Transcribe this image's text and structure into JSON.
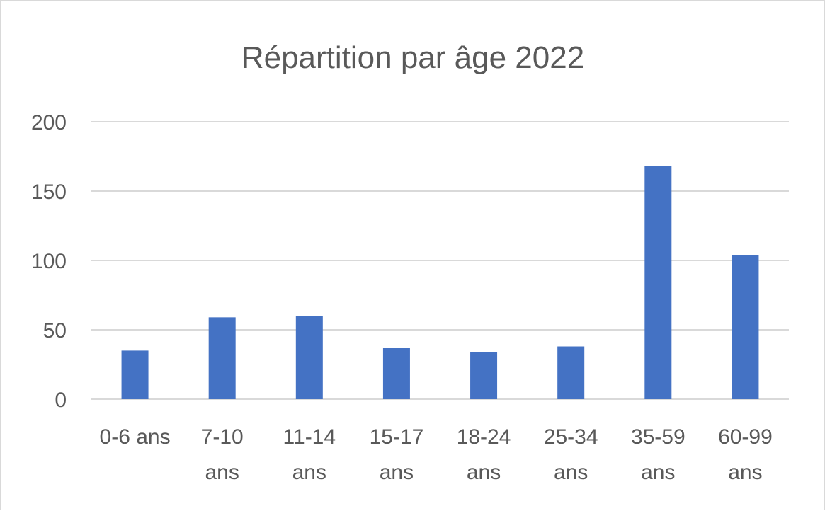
{
  "chart_data": {
    "type": "bar",
    "title": "Répartition par âge 2022",
    "xlabel": "",
    "ylabel": "",
    "categories": [
      [
        "0-6 ans"
      ],
      [
        "7-10",
        "ans"
      ],
      [
        "11-14",
        "ans"
      ],
      [
        "15-17",
        "ans"
      ],
      [
        "18-24",
        "ans"
      ],
      [
        "25-34",
        "ans"
      ],
      [
        "35-59",
        "ans"
      ],
      [
        "60-99",
        "ans"
      ]
    ],
    "values": [
      35,
      59,
      60,
      37,
      34,
      38,
      168,
      104
    ],
    "ylim": [
      0,
      200
    ],
    "yticks": [
      "0",
      "50",
      "100",
      "150",
      "200"
    ],
    "ytick_values": [
      0,
      50,
      100,
      150,
      200
    ],
    "grid": true,
    "legend": "none",
    "colors": {
      "bar": "#4472c4",
      "grid": "#d9d9d9",
      "text": "#595959"
    }
  }
}
